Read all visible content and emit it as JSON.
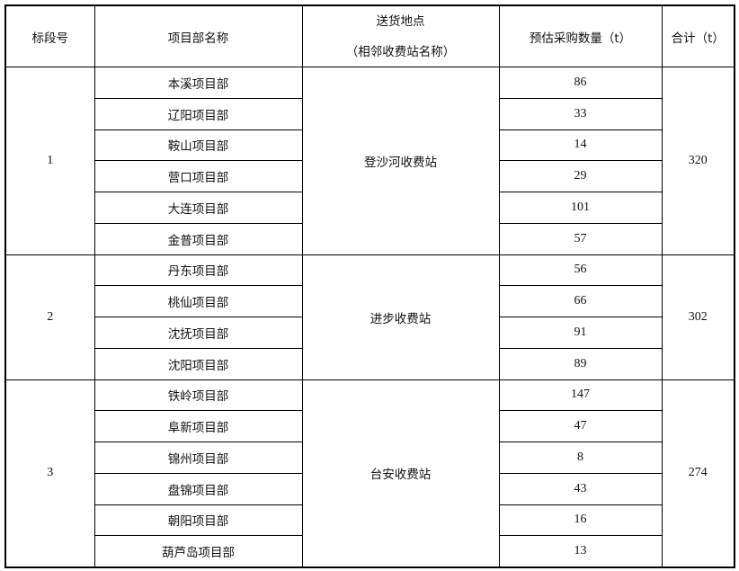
{
  "headers": {
    "section": "标段号",
    "project": "项目部名称",
    "delivery_line1": "送货地点",
    "delivery_line2": "（相邻收费站名称）",
    "quantity": "预估采购数量（t）",
    "total": "合计（t）"
  },
  "sections": [
    {
      "id": "1",
      "station": "登沙河收费站",
      "total": "320",
      "rows": [
        {
          "project": "本溪项目部",
          "qty": "86"
        },
        {
          "project": "辽阳项目部",
          "qty": "33"
        },
        {
          "project": "鞍山项目部",
          "qty": "14"
        },
        {
          "project": "营口项目部",
          "qty": "29"
        },
        {
          "project": "大连项目部",
          "qty": "101"
        },
        {
          "project": "金普项目部",
          "qty": "57"
        }
      ]
    },
    {
      "id": "2",
      "station": "进步收费站",
      "total": "302",
      "rows": [
        {
          "project": "丹东项目部",
          "qty": "56"
        },
        {
          "project": "桃仙项目部",
          "qty": "66"
        },
        {
          "project": "沈抚项目部",
          "qty": "91"
        },
        {
          "project": "沈阳项目部",
          "qty": "89"
        }
      ]
    },
    {
      "id": "3",
      "station": "台安收费站",
      "total": "274",
      "rows": [
        {
          "project": "铁岭项目部",
          "qty": "147"
        },
        {
          "project": "阜新项目部",
          "qty": "47"
        },
        {
          "project": "锦州项目部",
          "qty": "8"
        },
        {
          "project": "盘锦项目部",
          "qty": "43"
        },
        {
          "project": "朝阳项目部",
          "qty": "16"
        },
        {
          "project": "葫芦岛项目部",
          "qty": "13"
        }
      ]
    }
  ]
}
